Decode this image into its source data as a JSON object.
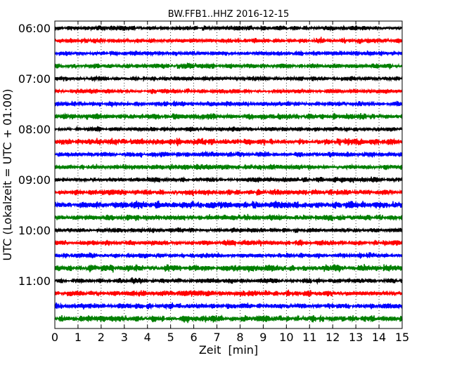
{
  "chart_data": {
    "type": "line",
    "title": "BW.FFB1..HHZ 2016-12-15",
    "xlabel": "Zeit  [min]",
    "ylabel": "UTC (Lokalzeit = UTC + 01:00)",
    "xlim": [
      0,
      15
    ],
    "x_ticks": [
      0,
      1,
      2,
      3,
      4,
      5,
      6,
      7,
      8,
      9,
      10,
      11,
      12,
      13,
      14,
      15
    ],
    "x_tick_labels": [
      "0",
      "1",
      "2",
      "3",
      "4",
      "5",
      "6",
      "7",
      "8",
      "9",
      "10",
      "11",
      "12",
      "13",
      "14",
      "15"
    ],
    "y_tick_labels": [
      "06:00",
      "07:00",
      "08:00",
      "09:00",
      "10:00",
      "11:00"
    ],
    "y_tick_rows": [
      0,
      4,
      8,
      12,
      16,
      20
    ],
    "grid": "vertical-dotted",
    "color_cycle": [
      "#000000",
      "#ff0000",
      "#0000ff",
      "#007f00"
    ],
    "traces": [
      {
        "start": "06:00",
        "amp": 0.3,
        "color": "#000000"
      },
      {
        "start": "06:15",
        "amp": 0.35,
        "color": "#ff0000"
      },
      {
        "start": "06:30",
        "amp": 0.3,
        "color": "#0000ff"
      },
      {
        "start": "06:45",
        "amp": 0.35,
        "color": "#007f00"
      },
      {
        "start": "07:00",
        "amp": 0.3,
        "color": "#000000"
      },
      {
        "start": "07:15",
        "amp": 0.3,
        "color": "#ff0000"
      },
      {
        "start": "07:30",
        "amp": 0.35,
        "color": "#0000ff"
      },
      {
        "start": "07:45",
        "amp": 0.4,
        "color": "#007f00"
      },
      {
        "start": "08:00",
        "amp": 0.3,
        "color": "#000000"
      },
      {
        "start": "08:15",
        "amp": 0.45,
        "color": "#ff0000"
      },
      {
        "start": "08:30",
        "amp": 0.35,
        "color": "#0000ff"
      },
      {
        "start": "08:45",
        "amp": 0.35,
        "color": "#007f00"
      },
      {
        "start": "09:00",
        "amp": 0.35,
        "color": "#000000"
      },
      {
        "start": "09:15",
        "amp": 0.4,
        "color": "#ff0000"
      },
      {
        "start": "09:30",
        "amp": 0.5,
        "color": "#0000ff"
      },
      {
        "start": "09:45",
        "amp": 0.4,
        "color": "#007f00"
      },
      {
        "start": "10:00",
        "amp": 0.3,
        "color": "#000000"
      },
      {
        "start": "10:15",
        "amp": 0.35,
        "color": "#ff0000"
      },
      {
        "start": "10:30",
        "amp": 0.35,
        "color": "#0000ff"
      },
      {
        "start": "10:45",
        "amp": 0.45,
        "color": "#007f00"
      },
      {
        "start": "11:00",
        "amp": 0.35,
        "color": "#000000"
      },
      {
        "start": "11:15",
        "amp": 0.4,
        "color": "#ff0000"
      },
      {
        "start": "11:30",
        "amp": 0.4,
        "color": "#0000ff"
      },
      {
        "start": "11:45",
        "amp": 0.45,
        "color": "#007f00"
      }
    ]
  }
}
